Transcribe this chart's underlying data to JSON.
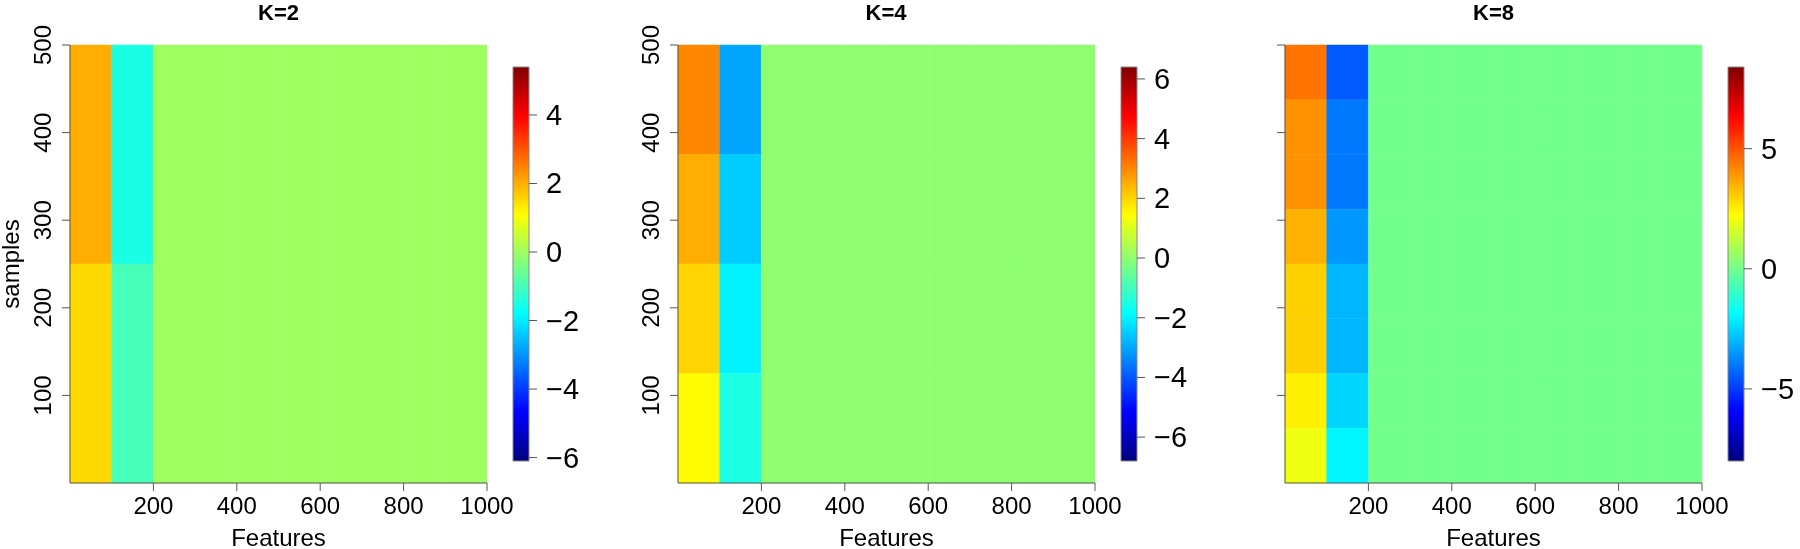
{
  "chart_data": [
    {
      "type": "heatmap",
      "title": "K=2",
      "xlabel": "Features",
      "ylabel": "samples",
      "x": [
        50,
        150,
        250,
        350,
        450,
        550,
        650,
        750,
        850,
        950
      ],
      "y": [
        375,
        125
      ],
      "cells": [
        [
          2,
          -1.5,
          0,
          0,
          0,
          0,
          0,
          0,
          0,
          0
        ],
        [
          1.5,
          -1,
          0,
          0,
          0,
          0,
          0,
          0,
          0,
          0
        ]
      ],
      "xlim": [
        0,
        1000
      ],
      "xticks": [
        200,
        400,
        600,
        800,
        1000
      ],
      "ylim": [
        0,
        500
      ],
      "yticks": [
        100,
        200,
        300,
        400,
        500
      ],
      "clim": [
        -6.1,
        5.4
      ],
      "cticks": [
        -6,
        -4,
        -2,
        0,
        2,
        4
      ]
    },
    {
      "type": "heatmap",
      "title": "K=4",
      "xlabel": "Features",
      "x": [
        50,
        150,
        250,
        350,
        450,
        550,
        650,
        750,
        850,
        950
      ],
      "y": [
        437.5,
        312.5,
        187.5,
        62.5
      ],
      "cells": [
        [
          3,
          -3,
          0,
          0,
          0,
          0,
          0,
          0,
          0,
          0
        ],
        [
          2.5,
          -2.5,
          0,
          0,
          0,
          0,
          0,
          0,
          0,
          0
        ],
        [
          2,
          -2,
          0,
          0,
          0,
          0,
          0,
          0,
          0,
          0
        ],
        [
          1.5,
          -1.5,
          0,
          0,
          0,
          0,
          0,
          0,
          0,
          0
        ]
      ],
      "xlim": [
        0,
        1000
      ],
      "xticks": [
        200,
        400,
        600,
        800,
        1000
      ],
      "ylim": [
        0,
        500
      ],
      "yticks": [
        100,
        200,
        300,
        400,
        500
      ],
      "clim": [
        -6.8,
        6.4
      ],
      "cticks": [
        -6,
        -4,
        -2,
        0,
        2,
        4,
        6
      ]
    },
    {
      "type": "heatmap",
      "title": "K=8",
      "xlabel": "Features",
      "x": [
        50,
        150,
        250,
        350,
        450,
        550,
        650,
        750,
        850,
        950
      ],
      "y": [
        468.75,
        406.25,
        343.75,
        281.25,
        218.75,
        156.25,
        93.75,
        31.25
      ],
      "cells": [
        [
          4.5,
          -4.5,
          0,
          0,
          0,
          0,
          0,
          0,
          0,
          0
        ],
        [
          4,
          -4,
          0,
          0,
          0,
          0,
          0,
          0,
          0,
          0
        ],
        [
          4,
          -4,
          0,
          0,
          0,
          0,
          0,
          0,
          0,
          0
        ],
        [
          3.5,
          -3.5,
          0,
          0,
          0,
          0,
          0,
          0,
          0,
          0
        ],
        [
          3,
          -3,
          0,
          0,
          0,
          0,
          0,
          0,
          0,
          0
        ],
        [
          3,
          -3,
          0,
          0,
          0,
          0,
          0,
          0,
          0,
          0
        ],
        [
          2.5,
          -2.5,
          0,
          0,
          0,
          0,
          0,
          0,
          0,
          0
        ],
        [
          2,
          -2,
          0,
          0,
          0,
          0,
          0,
          0,
          0,
          0
        ]
      ],
      "xlim": [
        0,
        1000
      ],
      "xticks": [
        200,
        400,
        600,
        800,
        1000
      ],
      "ylim": [
        0,
        500
      ],
      "yticks": [
        {
          "value": 100,
          "label": null
        },
        {
          "value": 200,
          "label": null
        },
        {
          "value": 300,
          "label": null
        },
        {
          "value": 400,
          "label": null
        },
        {
          "value": 500,
          "label": null
        }
      ],
      "tick_labels": "x",
      "clim": [
        -8,
        8.4
      ],
      "cticks": [
        -5,
        0,
        5
      ]
    }
  ]
}
